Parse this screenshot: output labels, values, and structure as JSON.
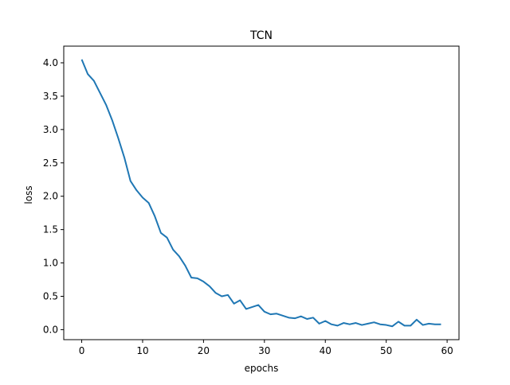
{
  "chart_data": {
    "type": "line",
    "title": "TCN",
    "xlabel": "epochs",
    "ylabel": "loss",
    "xlim": [
      -2.95,
      61.95
    ],
    "ylim": [
      -0.15,
      4.25
    ],
    "xticks": [
      0,
      10,
      20,
      30,
      40,
      50,
      60
    ],
    "yticks": [
      0.0,
      0.5,
      1.0,
      1.5,
      2.0,
      2.5,
      3.0,
      3.5,
      4.0
    ],
    "xtick_labels": [
      "0",
      "10",
      "20",
      "30",
      "40",
      "50",
      "60"
    ],
    "ytick_labels": [
      "0.0",
      "0.5",
      "1.0",
      "1.5",
      "2.0",
      "2.5",
      "3.0",
      "3.5",
      "4.0"
    ],
    "grid": false,
    "legend": "none",
    "series": [
      {
        "color": "#1f77b4",
        "x": [
          0,
          1,
          2,
          3,
          4,
          5,
          6,
          7,
          8,
          9,
          10,
          11,
          12,
          13,
          14,
          15,
          16,
          17,
          18,
          19,
          20,
          21,
          22,
          23,
          24,
          25,
          26,
          27,
          28,
          29,
          30,
          31,
          32,
          33,
          34,
          35,
          36,
          37,
          38,
          39,
          40,
          41,
          42,
          43,
          44,
          45,
          46,
          47,
          48,
          49,
          50,
          51,
          52,
          53,
          54,
          55,
          56,
          57,
          58,
          59
        ],
        "y": [
          4.05,
          3.83,
          3.73,
          3.55,
          3.37,
          3.14,
          2.87,
          2.58,
          2.23,
          2.09,
          1.98,
          1.9,
          1.7,
          1.45,
          1.38,
          1.2,
          1.1,
          0.96,
          0.78,
          0.77,
          0.72,
          0.65,
          0.55,
          0.5,
          0.52,
          0.39,
          0.44,
          0.31,
          0.34,
          0.37,
          0.27,
          0.23,
          0.24,
          0.21,
          0.18,
          0.17,
          0.2,
          0.16,
          0.18,
          0.09,
          0.13,
          0.08,
          0.06,
          0.1,
          0.08,
          0.1,
          0.07,
          0.09,
          0.11,
          0.08,
          0.07,
          0.05,
          0.12,
          0.06,
          0.06,
          0.15,
          0.07,
          0.09,
          0.08,
          0.08
        ]
      }
    ]
  }
}
